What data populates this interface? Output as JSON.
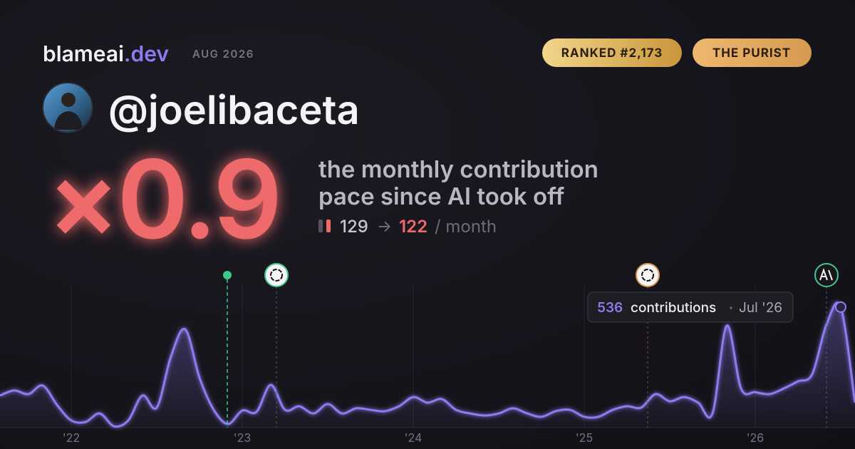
{
  "header": {
    "brand": "blameai",
    "brand_suffix": ".dev",
    "date": "AUG 2026",
    "badges": [
      "RANKED #2,173",
      "THE PURIST"
    ],
    "username": "@joelibaceta"
  },
  "stats": {
    "multiplier": "×0.9",
    "description": [
      "the monthly contribution",
      "pace since AI took off"
    ],
    "before": "129",
    "arrow": "→",
    "after": "122",
    "unit": "/ month"
  },
  "chart_data": {
    "type": "area",
    "color": "#8b7cf0",
    "categories": [
      null,
      null,
      null,
      null,
      null,
      "'22",
      null,
      null,
      null,
      null,
      null,
      null,
      null,
      null,
      null,
      null,
      null,
      "'23",
      null,
      null,
      null,
      null,
      null,
      null,
      null,
      null,
      null,
      null,
      null,
      "'24",
      null,
      null,
      null,
      null,
      null,
      null,
      null,
      null,
      null,
      null,
      null,
      "'25",
      null,
      null,
      null,
      null,
      null,
      null,
      null,
      null,
      null,
      null,
      null,
      "'26",
      null,
      null,
      null,
      null,
      null,
      null,
      null
    ],
    "values": [
      143,
      165,
      149,
      187,
      101,
      32,
      25,
      63,
      6,
      32,
      143,
      89,
      317,
      437,
      222,
      79,
      16,
      76,
      70,
      190,
      79,
      95,
      63,
      105,
      63,
      86,
      79,
      73,
      95,
      136,
      111,
      127,
      79,
      63,
      54,
      63,
      86,
      63,
      48,
      73,
      79,
      48,
      48,
      79,
      95,
      89,
      149,
      117,
      136,
      111,
      63,
      453,
      174,
      158,
      149,
      174,
      206,
      238,
      459,
      536,
      111
    ],
    "ylim": [
      0,
      640
    ],
    "tooltip": {
      "label": "contributions",
      "date": "Jul '26"
    }
  }
}
